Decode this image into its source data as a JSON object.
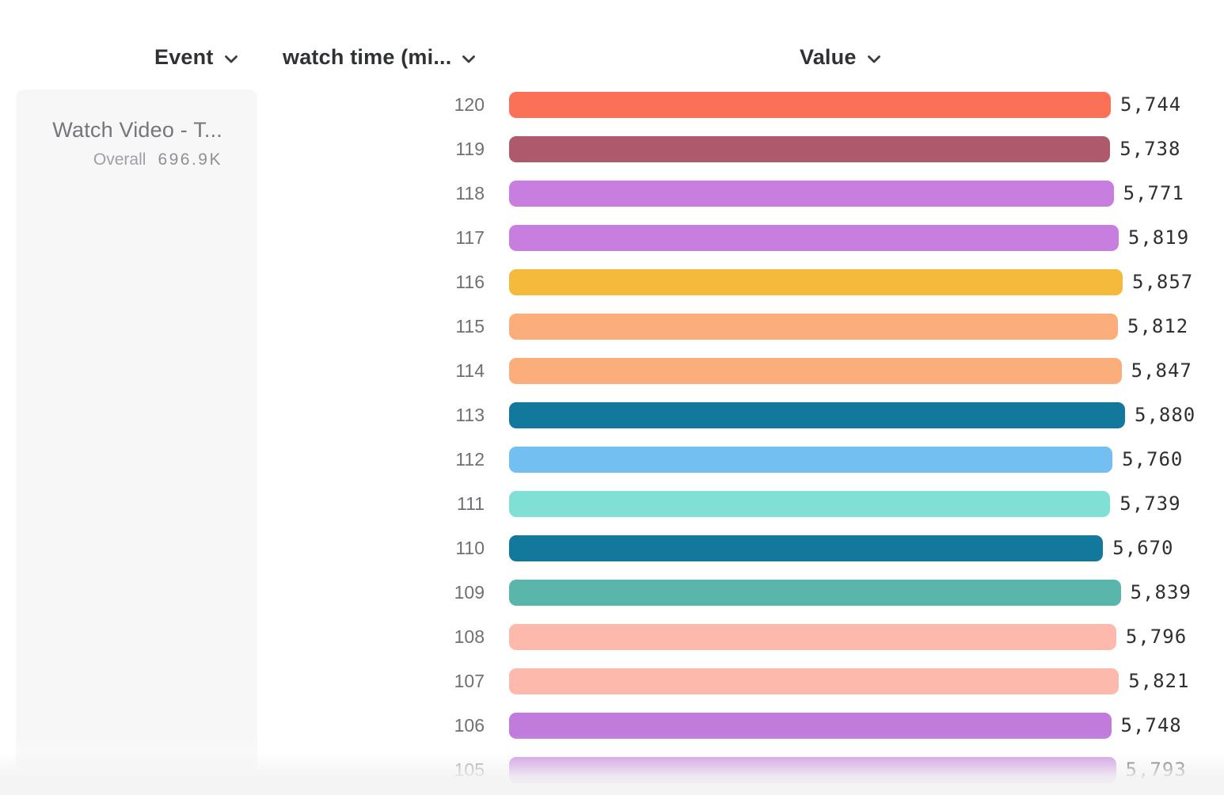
{
  "header": {
    "event": {
      "label": "Event"
    },
    "measure": {
      "label": "watch time (mi..."
    },
    "value": {
      "label": "Value"
    }
  },
  "event_card": {
    "title": "Watch Video - T...",
    "overall_label": "Overall",
    "overall_value": "696.9K"
  },
  "chart_data": {
    "type": "bar",
    "orientation": "horizontal",
    "title": "",
    "xlabel": "Value",
    "ylabel": "watch time (mi...",
    "xlim": [
      0,
      5880
    ],
    "grid": false,
    "legend": false,
    "categories": [
      "120",
      "119",
      "118",
      "117",
      "116",
      "115",
      "114",
      "113",
      "112",
      "111",
      "110",
      "109",
      "108",
      "107",
      "106",
      "105"
    ],
    "values": [
      5744,
      5738,
      5771,
      5819,
      5857,
      5812,
      5847,
      5880,
      5760,
      5739,
      5670,
      5839,
      5796,
      5821,
      5748,
      5793
    ],
    "value_labels": [
      "5,744",
      "5,738",
      "5,771",
      "5,819",
      "5,857",
      "5,812",
      "5,847",
      "5,880",
      "5,760",
      "5,739",
      "5,670",
      "5,839",
      "5,796",
      "5,821",
      "5,748",
      "5,793"
    ],
    "bar_colors": [
      "#FB7158",
      "#AF5A6C",
      "#C87EDF",
      "#C87EDF",
      "#F5B93C",
      "#FBAE7B",
      "#FBAE7B",
      "#12799C",
      "#73BFF1",
      "#81E0D6",
      "#12799C",
      "#5AB5AB",
      "#FCB9AC",
      "#FCB9AC",
      "#C07BDB",
      "#C07BDB"
    ]
  },
  "colors": {
    "card_background": "#F7F7F8",
    "header_text": "#303134",
    "category_text": "#6F6F77",
    "value_text": "#2E2F33",
    "icon": "#3B3C3E"
  }
}
